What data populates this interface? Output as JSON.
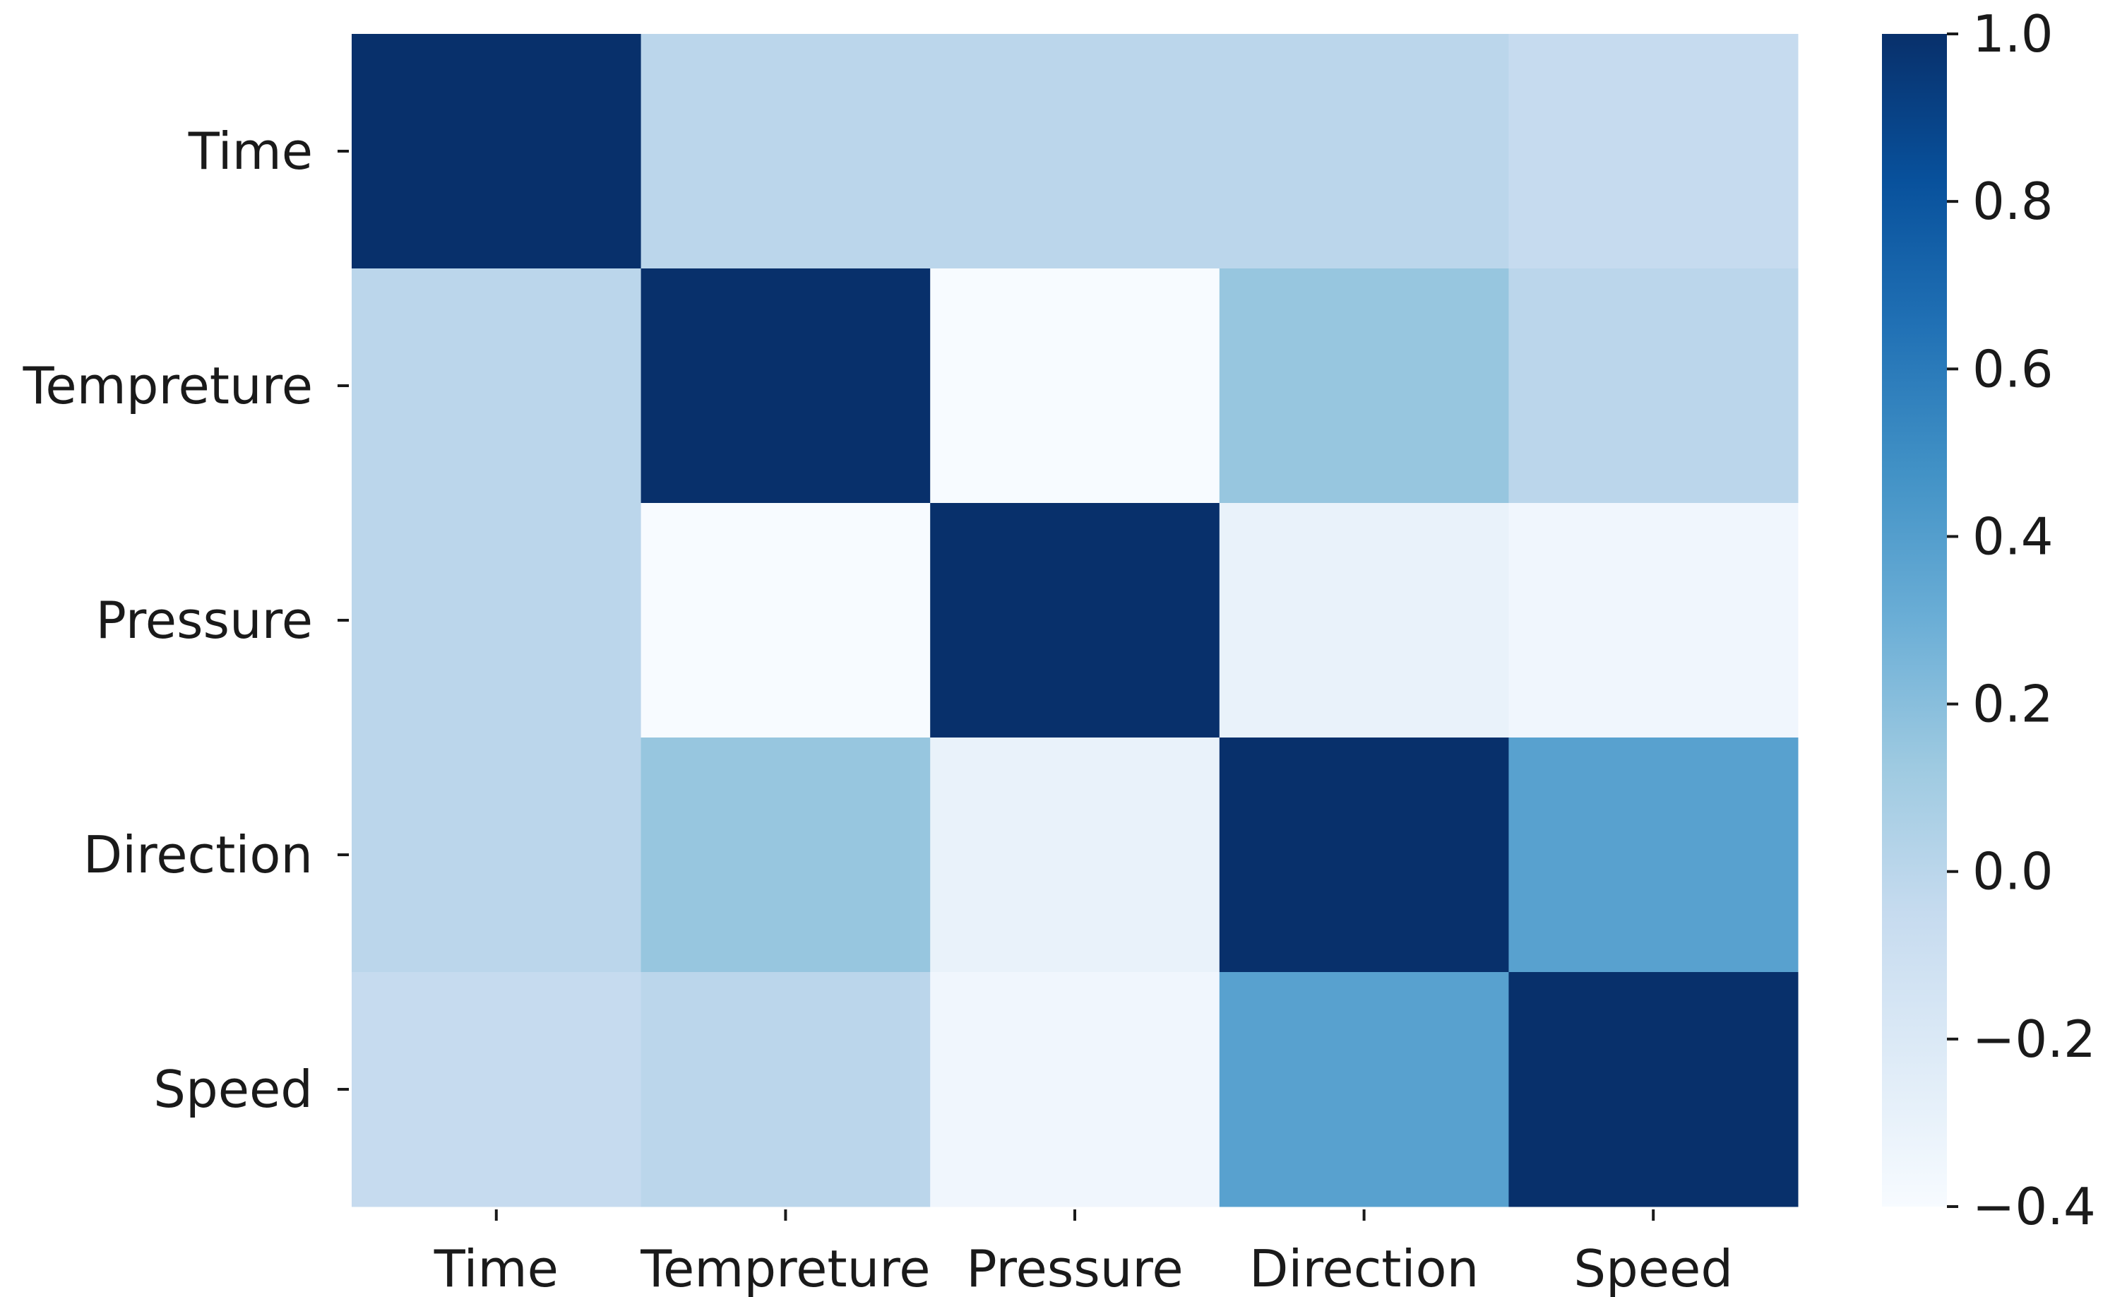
{
  "chart_data": {
    "type": "heatmap",
    "title": "",
    "xlabel": "",
    "ylabel": "",
    "x_categories": [
      "Time",
      "Tempreture",
      "Pressure",
      "Direction",
      "Speed"
    ],
    "y_categories": [
      "Time",
      "Tempreture",
      "Pressure",
      "Direction",
      "Speed"
    ],
    "values": [
      [
        1.0,
        0.0,
        0.0,
        0.0,
        -0.05
      ],
      [
        0.0,
        1.0,
        -0.4,
        0.15,
        0.0
      ],
      [
        0.0,
        -0.4,
        1.0,
        -0.3,
        -0.35
      ],
      [
        0.0,
        0.15,
        -0.3,
        1.0,
        0.38
      ],
      [
        -0.05,
        0.0,
        -0.35,
        0.38,
        1.0
      ]
    ],
    "colormap": "Blues",
    "vmin": -0.4,
    "vmax": 1.0,
    "colorbar": {
      "ticks": [
        1.0,
        0.8,
        0.6,
        0.4,
        0.2,
        0.0,
        -0.2,
        -0.4
      ],
      "tick_labels": [
        "1.0",
        "0.8",
        "0.6",
        "0.4",
        "0.2",
        "0.0",
        "−0.2",
        "−0.4"
      ],
      "position": "right"
    },
    "grid": false
  }
}
